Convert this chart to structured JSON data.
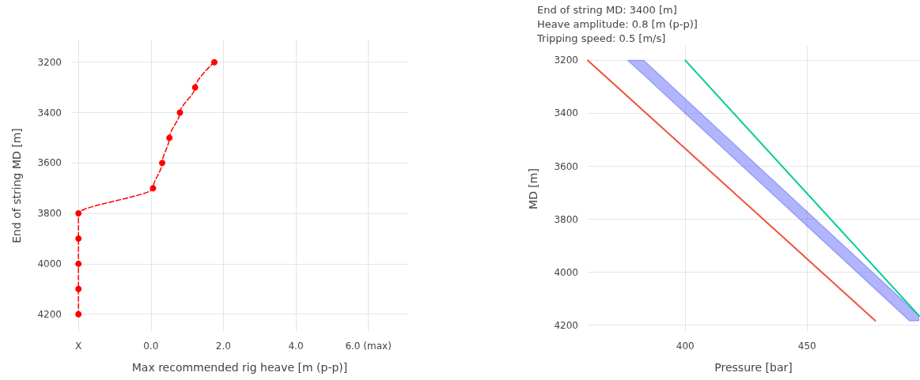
{
  "chart_data": [
    {
      "type": "line",
      "xlabel": "Max recommended rig heave [m (p-p)]",
      "ylabel": "End of string MD [m]",
      "x": [
        1.75,
        1.22,
        0.8,
        0.51,
        0.31,
        0.06,
        -2,
        -2,
        -2,
        -2,
        -2
      ],
      "series": [
        {
          "color": "#ff0000",
          "values": [
            3200,
            3300,
            3400,
            3500,
            3600,
            3700,
            3800,
            3900,
            4000,
            4100,
            4200
          ]
        }
      ],
      "xlim": [
        -2.2,
        7.1
      ],
      "ylim": [
        4270,
        3110
      ],
      "xticks": [
        {
          "value": -2,
          "label": "X"
        },
        {
          "value": 0,
          "label": "0.0"
        },
        {
          "value": 2,
          "label": "2.0"
        },
        {
          "value": 4,
          "label": "4.0"
        },
        {
          "value": 6,
          "label": "6.0 (max)"
        }
      ],
      "yticks": [
        3200,
        3400,
        3600,
        3800,
        4000,
        4200
      ],
      "grid": true,
      "marker": "circle",
      "line_style": "dashed"
    },
    {
      "type": "line",
      "xlabel": "Pressure [bar]",
      "ylabel": "MD [m]",
      "annotations": [
        "End of string MD: 3400 [m]",
        "Heave amplitude: 0.8 [m (p-p)]",
        "Tripping speed: 0.5 [m/s]"
      ],
      "series": [
        {
          "color": "#ef553b",
          "x": [
            360,
            478
          ],
          "values": [
            3200,
            4183
          ]
        },
        {
          "color": "#00cc96",
          "x": [
            400,
            496
          ],
          "values": [
            3200,
            4165
          ]
        },
        {
          "color": "#636efa",
          "x": [
            376.5,
            383,
            492,
            496
          ],
          "values": [
            null,
            null,
            null,
            null
          ],
          "lower": [
            3200,
            3200,
            4130,
            4164
          ],
          "upper": [
            3200,
            3255,
            4183,
            4183
          ]
        }
      ],
      "xlim": [
        360,
        496
      ],
      "ylim": [
        4225,
        3145
      ],
      "xticks": [
        400,
        450
      ],
      "yticks": [
        3200,
        3400,
        3600,
        3800,
        4000,
        4200
      ],
      "grid": true,
      "marker": "none",
      "line_style": "solid"
    }
  ]
}
